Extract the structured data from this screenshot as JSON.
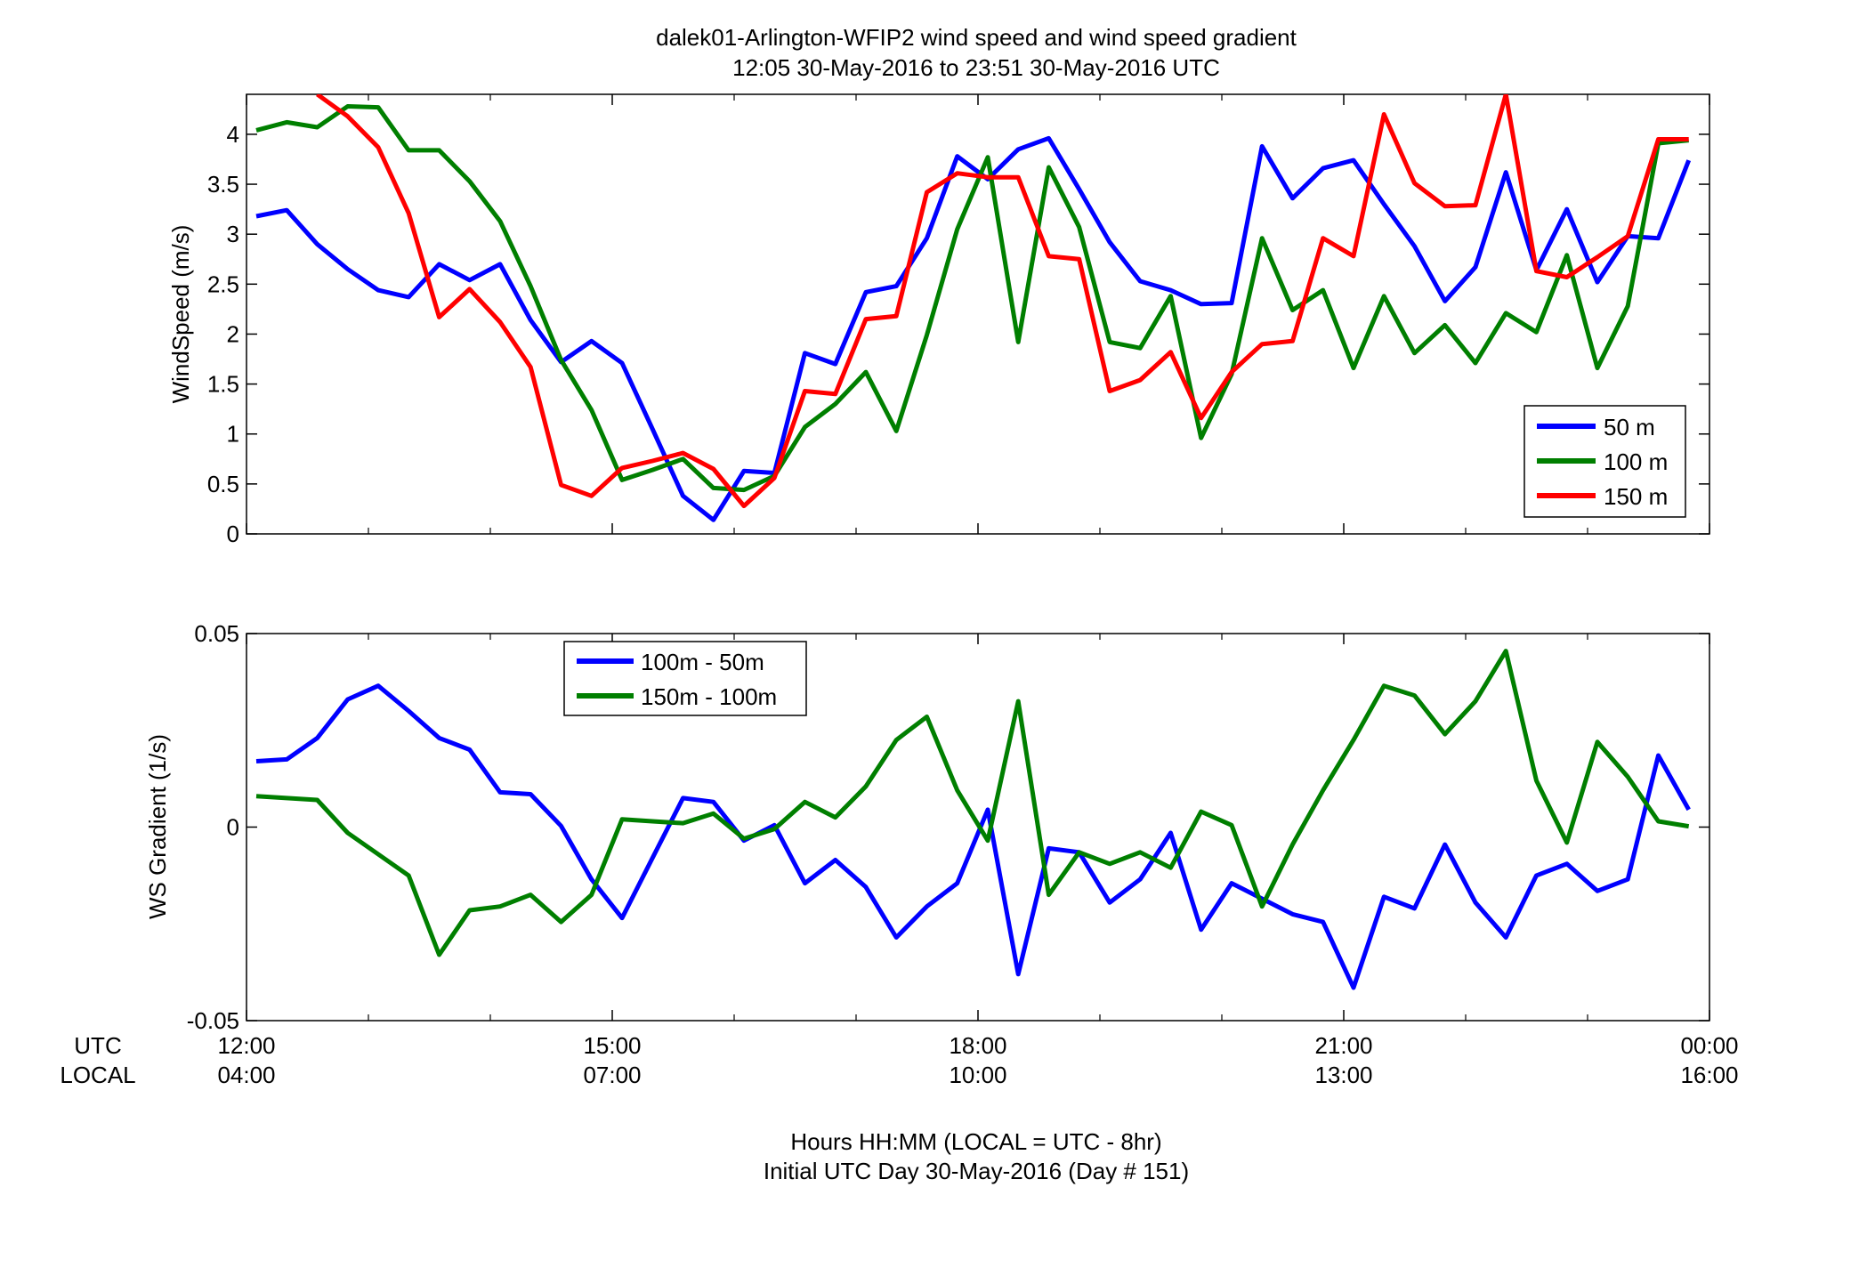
{
  "figure": {
    "title_line1": "dalek01-Arlington-WFIP2  wind speed and wind speed gradient",
    "title_line2": "12:05 30-May-2016 to 23:51 30-May-2016  UTC",
    "xlabel_line1": "Hours HH:MM  (LOCAL = UTC - 8hr)",
    "xlabel_line2": "Initial UTC Day 30-May-2016 (Day # 151)",
    "row_label_utc": "UTC",
    "row_label_local": "LOCAL",
    "x_ticks_utc": [
      "12:00",
      "15:00",
      "18:00",
      "21:00",
      "00:00"
    ],
    "x_ticks_local": [
      "04:00",
      "07:00",
      "10:00",
      "13:00",
      "16:00"
    ],
    "x_range_hours": [
      12,
      24
    ],
    "x_tick_hours": [
      12,
      15,
      18,
      21,
      24
    ]
  },
  "chart_data": [
    {
      "type": "line",
      "ylabel": "WindSpeed (m/s)",
      "ylim": [
        0,
        4.4
      ],
      "yticks": [
        0,
        0.5,
        1,
        1.5,
        2,
        2.5,
        3,
        3.5,
        4
      ],
      "ytick_labels": [
        "0",
        "0.5",
        "1",
        "1.5",
        "2",
        "2.5",
        "3",
        "3.5",
        "4"
      ],
      "grid": false,
      "legend_position": "lower-right",
      "x_hours": [
        12.08,
        12.33,
        12.58,
        12.83,
        13.08,
        13.33,
        13.58,
        13.83,
        14.08,
        14.33,
        14.58,
        14.83,
        15.08,
        15.33,
        15.58,
        15.83,
        16.08,
        16.33,
        16.58,
        16.83,
        17.08,
        17.33,
        17.58,
        17.83,
        18.08,
        18.33,
        18.58,
        18.83,
        19.08,
        19.33,
        19.58,
        19.83,
        20.08,
        20.33,
        20.58,
        20.83,
        21.08,
        21.33,
        21.58,
        21.83,
        22.08,
        22.33,
        22.58,
        22.83,
        23.08,
        23.33,
        23.58,
        23.83
      ],
      "series": [
        {
          "name": "50 m",
          "color": "#0000ff",
          "values": [
            3.18,
            3.24,
            2.9,
            2.65,
            2.44,
            2.37,
            2.7,
            2.54,
            2.7,
            2.14,
            1.72,
            1.93,
            1.71,
            1.05,
            0.38,
            0.14,
            0.63,
            0.61,
            1.81,
            1.7,
            2.42,
            2.48,
            2.96,
            3.78,
            3.55,
            3.85,
            3.96,
            3.45,
            2.92,
            2.53,
            2.44,
            2.3,
            2.31,
            3.88,
            3.36,
            3.66,
            3.74,
            3.3,
            2.88,
            2.33,
            2.67,
            3.62,
            2.64,
            3.25,
            2.52,
            2.98,
            2.96,
            3.74
          ]
        },
        {
          "name": "100 m",
          "color": "#007f00",
          "values": [
            4.04,
            4.12,
            4.07,
            4.28,
            4.27,
            3.84,
            3.84,
            3.53,
            3.13,
            2.48,
            1.74,
            1.24,
            0.54,
            0.64,
            0.75,
            0.46,
            0.44,
            0.58,
            1.07,
            1.3,
            1.62,
            1.03,
            1.99,
            3.05,
            3.77,
            1.92,
            3.67,
            3.07,
            1.92,
            1.86,
            2.38,
            0.96,
            1.6,
            2.96,
            2.24,
            2.44,
            1.66,
            2.38,
            1.81,
            2.09,
            1.71,
            2.21,
            2.02,
            2.79,
            1.66,
            2.28,
            3.91,
            3.94
          ]
        },
        {
          "name": "150 m",
          "color": "#ff0000",
          "values": [
            null,
            null,
            4.45,
            4.18,
            3.87,
            3.21,
            2.17,
            2.45,
            2.12,
            1.67,
            0.49,
            0.38,
            0.66,
            0.73,
            0.81,
            0.65,
            0.28,
            0.56,
            1.43,
            1.4,
            2.15,
            2.18,
            3.42,
            3.61,
            3.57,
            3.57,
            2.78,
            2.75,
            1.43,
            1.54,
            1.82,
            1.16,
            1.62,
            1.9,
            1.93,
            2.96,
            2.78,
            4.2,
            3.51,
            3.28,
            3.29,
            4.45,
            2.63,
            2.57,
            2.77,
            2.98,
            3.95,
            3.95
          ]
        }
      ]
    },
    {
      "type": "line",
      "ylabel": "WS Gradient (1/s)",
      "ylim": [
        -0.05,
        0.05
      ],
      "yticks": [
        -0.05,
        0,
        0.05
      ],
      "ytick_labels": [
        "-0.05",
        "0",
        "0.05"
      ],
      "grid": false,
      "legend_position": "upper-left",
      "x_hours": [
        12.08,
        12.33,
        12.58,
        12.83,
        13.08,
        13.33,
        13.58,
        13.83,
        14.08,
        14.33,
        14.58,
        14.83,
        15.08,
        15.33,
        15.58,
        15.83,
        16.08,
        16.33,
        16.58,
        16.83,
        17.08,
        17.33,
        17.58,
        17.83,
        18.08,
        18.33,
        18.58,
        18.83,
        19.08,
        19.33,
        19.58,
        19.83,
        20.08,
        20.33,
        20.58,
        20.83,
        21.08,
        21.33,
        21.58,
        21.83,
        22.08,
        22.33,
        22.58,
        22.83,
        23.08,
        23.33,
        23.58,
        23.83
      ],
      "series": [
        {
          "name": "100m - 50m",
          "color": "#0000ff",
          "values": [
            0.017,
            0.0175,
            0.023,
            0.033,
            0.0365,
            0.03,
            0.023,
            0.02,
            0.009,
            0.0085,
            0.0003,
            -0.0135,
            -0.0235,
            -0.008,
            0.0075,
            0.0065,
            -0.0035,
            0.0005,
            -0.0145,
            -0.0085,
            -0.0155,
            -0.0285,
            -0.0205,
            -0.0145,
            0.0045,
            -0.038,
            -0.0055,
            -0.0065,
            -0.0195,
            -0.0135,
            -0.0015,
            -0.0265,
            -0.0145,
            -0.0185,
            -0.0225,
            -0.0245,
            -0.0415,
            -0.018,
            -0.021,
            -0.0045,
            -0.0195,
            -0.0285,
            -0.0125,
            -0.0095,
            -0.0165,
            -0.0135,
            0.0185,
            0.0045
          ]
        },
        {
          "name": "150m - 100m",
          "color": "#007f00",
          "values": [
            0.008,
            0.0075,
            0.007,
            -0.0015,
            -0.007,
            -0.0125,
            -0.033,
            -0.0215,
            -0.0205,
            -0.0175,
            -0.0245,
            -0.0175,
            0.002,
            0.0015,
            0.001,
            0.0035,
            -0.003,
            -0.0005,
            0.0065,
            0.0025,
            0.0105,
            0.0225,
            0.0285,
            0.0095,
            -0.0035,
            0.0325,
            -0.0175,
            -0.0065,
            -0.0095,
            -0.0065,
            -0.0105,
            0.004,
            0.0005,
            -0.0205,
            -0.0045,
            0.0095,
            0.0225,
            0.0365,
            0.034,
            0.024,
            0.0325,
            0.0455,
            0.012,
            -0.004,
            0.022,
            0.013,
            0.0015,
            0.0002
          ]
        }
      ]
    }
  ]
}
